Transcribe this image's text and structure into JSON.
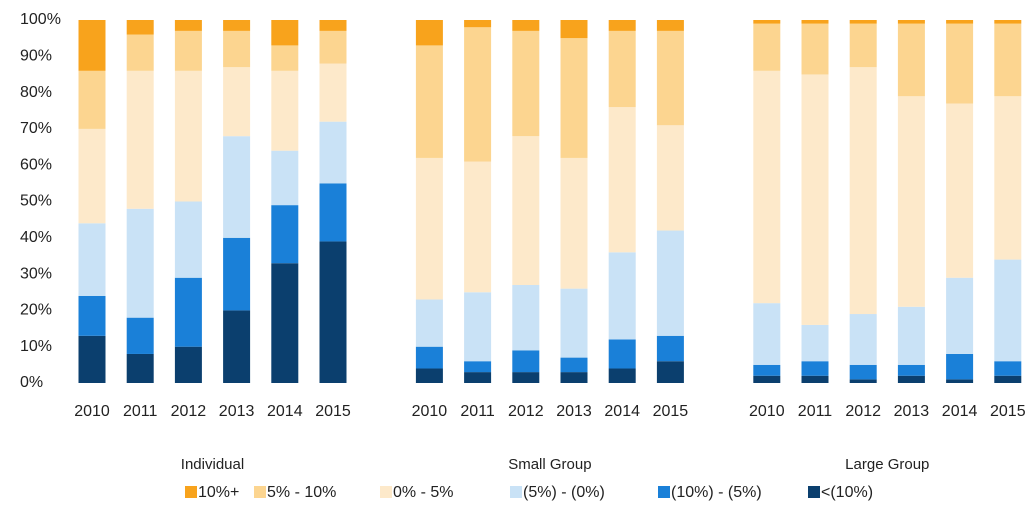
{
  "chart_data": {
    "type": "stacked-bar",
    "categories": [
      "2010",
      "2011",
      "2012",
      "2013",
      "2014",
      "2015",
      "2010",
      "2011",
      "2012",
      "2013",
      "2014",
      "2015",
      "2010",
      "2011",
      "2012",
      "2013",
      "2014",
      "2015"
    ],
    "groups": [
      "Individual",
      "Small Group",
      "Large Group"
    ],
    "ylim": [
      0,
      100
    ],
    "yticks": [
      {
        "value": 0,
        "label": "0%"
      },
      {
        "value": 10,
        "label": "10%"
      },
      {
        "value": 20,
        "label": "20%"
      },
      {
        "value": 30,
        "label": "30%"
      },
      {
        "value": 40,
        "label": "40%"
      },
      {
        "value": 50,
        "label": "50%"
      },
      {
        "value": 60,
        "label": "60%"
      },
      {
        "value": 70,
        "label": "70%"
      },
      {
        "value": 80,
        "label": "80%"
      },
      {
        "value": 90,
        "label": "90%"
      },
      {
        "value": 100,
        "label": "100%"
      }
    ],
    "series": [
      {
        "name": "<(10%)",
        "color": "#0b3f6e",
        "values": [
          13,
          8,
          10,
          20,
          33,
          39,
          4,
          3,
          3,
          3,
          4,
          6,
          2,
          2,
          1,
          2,
          1,
          2
        ]
      },
      {
        "name": "(10%) - (5%)",
        "color": "#1a80d8",
        "values": [
          11,
          10,
          19,
          20,
          16,
          16,
          6,
          3,
          6,
          4,
          8,
          7,
          3,
          4,
          4,
          3,
          7,
          4
        ]
      },
      {
        "name": "(5%) - (0%)",
        "color": "#c9e2f6",
        "values": [
          20,
          30,
          21,
          28,
          15,
          17,
          13,
          19,
          18,
          19,
          24,
          29,
          17,
          10,
          14,
          16,
          21,
          28
        ]
      },
      {
        "name": "0% - 5%",
        "color": "#fde9ca",
        "values": [
          26,
          38,
          36,
          19,
          22,
          16,
          39,
          36,
          41,
          36,
          40,
          29,
          64,
          69,
          68,
          58,
          48,
          45
        ]
      },
      {
        "name": "5% - 10%",
        "color": "#fcd590",
        "values": [
          16,
          10,
          11,
          10,
          7,
          9,
          31,
          37,
          29,
          33,
          21,
          26,
          13,
          14,
          12,
          20,
          22,
          20
        ]
      },
      {
        "name": "10%+",
        "color": "#f8a31c",
        "values": [
          14,
          4,
          3,
          3,
          7,
          3,
          7,
          2,
          3,
          5,
          3,
          3,
          1,
          1,
          1,
          1,
          1,
          1
        ]
      }
    ]
  }
}
